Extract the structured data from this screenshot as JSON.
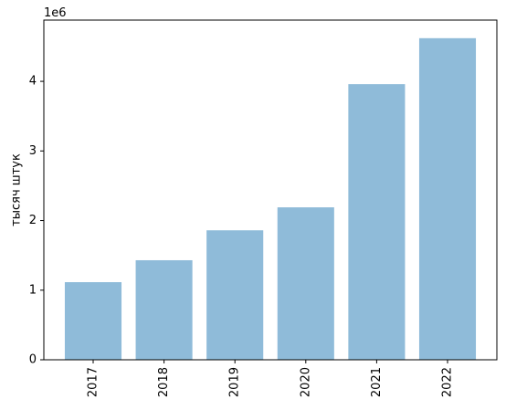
{
  "chart_data": {
    "type": "bar",
    "y_label": "тысяч штук",
    "y_offset_label": "1e6",
    "categories": [
      "2017",
      "2018",
      "2019",
      "2020",
      "2021",
      "2022"
    ],
    "values": [
      1.115,
      1.43,
      1.86,
      2.19,
      3.96,
      4.62
    ],
    "color": "#8fbbd9",
    "ylim": [
      0,
      4.88
    ],
    "yticks": [
      0,
      1,
      2,
      3,
      4
    ],
    "grid": false
  }
}
